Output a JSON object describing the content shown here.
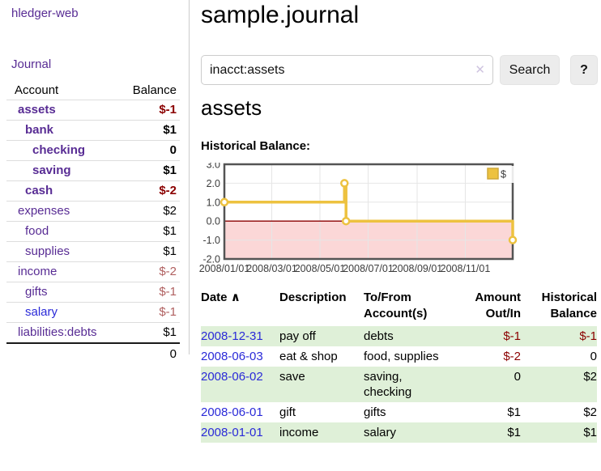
{
  "colors": {
    "link_purple": "#582c94",
    "link_blue": "#2a2ad8",
    "neg_strong": "#8b0000",
    "neg_soft": "#b06060",
    "row_green": "#dff0d8",
    "chart_gold": "#edc240",
    "chart_border": "#545454",
    "grid_line": "#e6e6e6"
  },
  "app": {
    "title": "hledger-web"
  },
  "sidebar": {
    "journal_link": "Journal",
    "table": {
      "account_header": "Account",
      "balance_header": "Balance"
    },
    "accounts": [
      {
        "name": "assets",
        "balance": "$-1",
        "depth": 0
      },
      {
        "name": "bank",
        "balance": "$1",
        "depth": 1
      },
      {
        "name": "checking",
        "balance": "0",
        "depth": 2
      },
      {
        "name": "saving",
        "balance": "$1",
        "depth": 2
      },
      {
        "name": "cash",
        "balance": "$-2",
        "depth": 1
      },
      {
        "name": "expenses",
        "balance": "$2",
        "depth": 0
      },
      {
        "name": "food",
        "balance": "$1",
        "depth": 1
      },
      {
        "name": "supplies",
        "balance": "$1",
        "depth": 1
      },
      {
        "name": "income",
        "balance": "$-2",
        "depth": 0
      },
      {
        "name": "gifts",
        "balance": "$-1",
        "depth": 1
      },
      {
        "name": "salary",
        "balance": "$-1",
        "depth": 1
      },
      {
        "name": "liabilities:debts",
        "balance": "$1",
        "depth": 0
      }
    ],
    "total": "0"
  },
  "main": {
    "title": "sample.journal",
    "search": {
      "value": "inacct:assets",
      "clear_icon": "✕",
      "button": "Search",
      "help_button": "?"
    },
    "account_heading": "assets",
    "chart_heading": "Historical Balance:"
  },
  "chart_data": {
    "type": "line",
    "title": "Historical Balance:",
    "x_range": [
      "2008-01-01",
      "2008-12-31"
    ],
    "y_range": [
      -2,
      3
    ],
    "y_ticks": [
      3,
      2,
      1,
      0,
      -1,
      -2
    ],
    "y_tick_labels": [
      "3.0",
      "2.0",
      "1.0",
      "0.0",
      "-1.0",
      "-2.0"
    ],
    "x_ticks": [
      {
        "label": "2008/01/01",
        "date": "2008-01-01"
      },
      {
        "label": "2008/03/01",
        "date": "2008-03-01"
      },
      {
        "label": "2008/05/01",
        "date": "2008-05-01"
      },
      {
        "label": "2008/07/01",
        "date": "2008-07-01"
      },
      {
        "label": "2008/09/01",
        "date": "2008-09-01"
      },
      {
        "label": "2008/11/01",
        "date": "2008-11-01"
      }
    ],
    "series": [
      {
        "name": "$",
        "color": "#edc240",
        "steps": true,
        "points": [
          {
            "date": "2008-01-01",
            "value": 1
          },
          {
            "date": "2008-06-01",
            "value": 2
          },
          {
            "date": "2008-06-03",
            "value": 0
          },
          {
            "date": "2008-12-31",
            "value": -1
          }
        ]
      }
    ],
    "legend": {
      "label": "$",
      "position": "top-right"
    },
    "negative_region_color": "#fbd7d7",
    "zero_line_color": "#8b0000",
    "grid": true
  },
  "register": {
    "headers": {
      "date": "Date",
      "sort_indicator": "∧",
      "description": "Description",
      "accounts_line1": "To/From",
      "accounts_line2": "Account(s)",
      "amount_line1": "Amount",
      "amount_line2": "Out/In",
      "balance_line1": "Historical",
      "balance_line2": "Balance"
    },
    "rows": [
      {
        "date": "2008-12-31",
        "description": "pay off",
        "accounts": "debts",
        "amount": "$-1",
        "balance": "$-1"
      },
      {
        "date": "2008-06-03",
        "description": "eat & shop",
        "accounts": "food, supplies",
        "amount": "$-2",
        "balance": "0"
      },
      {
        "date": "2008-06-02",
        "description": "save",
        "accounts": "saving, checking",
        "amount": "0",
        "balance": "$2"
      },
      {
        "date": "2008-06-01",
        "description": "gift",
        "accounts": "gifts",
        "amount": "$1",
        "balance": "$2"
      },
      {
        "date": "2008-01-01",
        "description": "income",
        "accounts": "salary",
        "amount": "$1",
        "balance": "$1"
      }
    ]
  }
}
